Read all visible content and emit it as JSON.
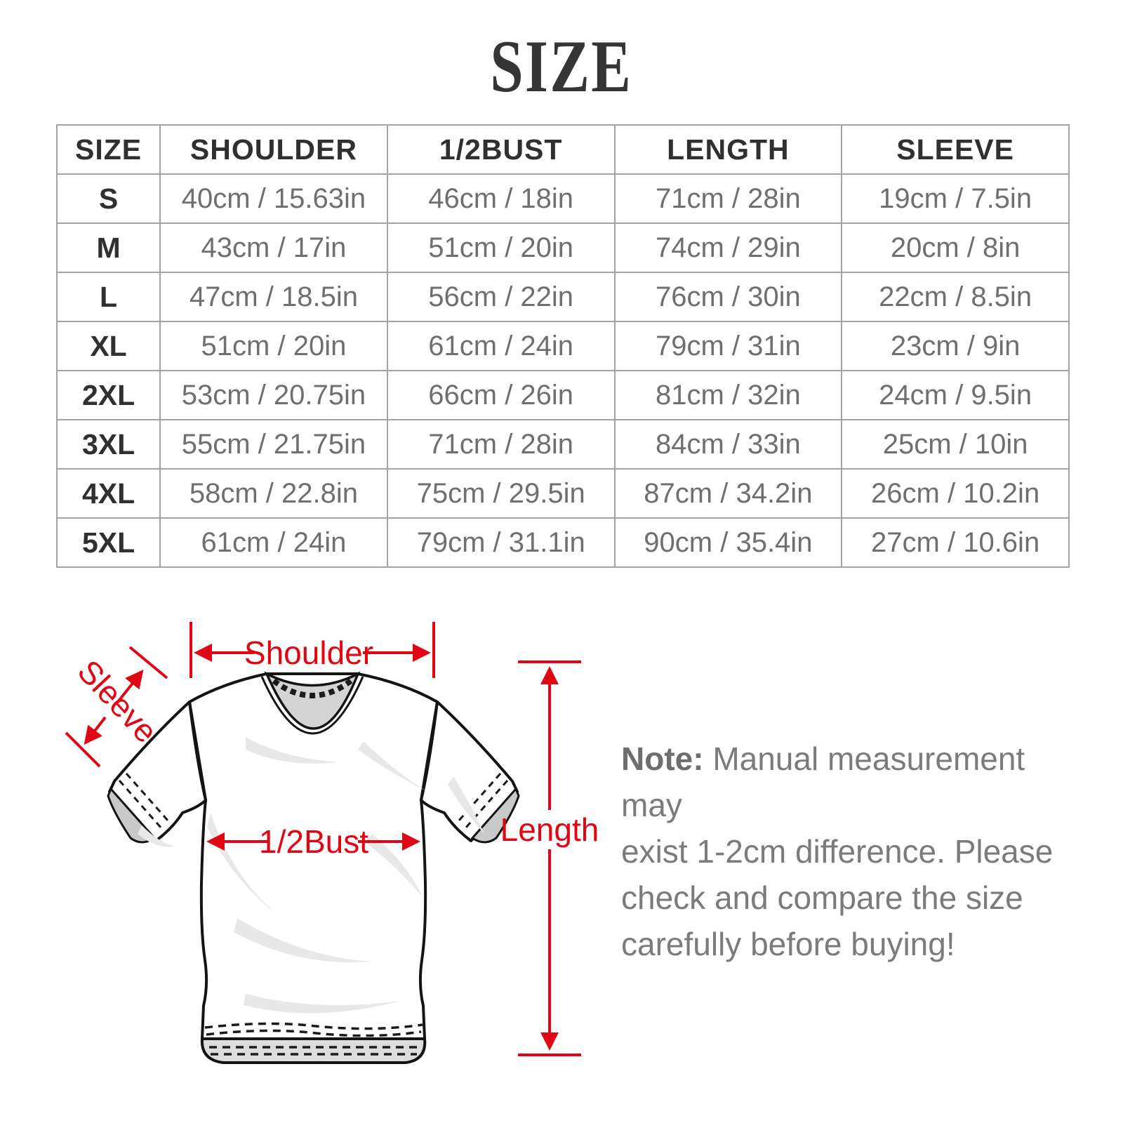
{
  "title": "SIZE",
  "table": {
    "columns": [
      "SIZE",
      "SHOULDER",
      "1/2BUST",
      "LENGTH",
      "SLEEVE"
    ],
    "rows": [
      [
        "S",
        "40cm / 15.63in",
        "46cm / 18in",
        "71cm / 28in",
        "19cm / 7.5in"
      ],
      [
        "M",
        "43cm / 17in",
        "51cm / 20in",
        "74cm / 29in",
        "20cm / 8in"
      ],
      [
        "L",
        "47cm / 18.5in",
        "56cm / 22in",
        "76cm / 30in",
        "22cm / 8.5in"
      ],
      [
        "XL",
        "51cm / 20in",
        "61cm / 24in",
        "79cm / 31in",
        "23cm / 9in"
      ],
      [
        "2XL",
        "53cm / 20.75in",
        "66cm / 26in",
        "81cm / 32in",
        "24cm / 9.5in"
      ],
      [
        "3XL",
        "55cm / 21.75in",
        "71cm / 28in",
        "84cm / 33in",
        "25cm / 10in"
      ],
      [
        "4XL",
        "58cm / 22.8in",
        "75cm / 29.5in",
        "87cm / 34.2in",
        "26cm / 10.2in"
      ],
      [
        "5XL",
        "61cm / 24in",
        "79cm / 31.1in",
        "90cm / 35.4in",
        "27cm / 10.6in"
      ]
    ]
  },
  "diagram": {
    "labels": {
      "shoulder": "Shoulder",
      "sleeve": "Sleeve",
      "half_bust": "1/2Bust",
      "length": "Length"
    },
    "accent_color": "#e10613"
  },
  "note": {
    "label": "Note:",
    "text": " Manual measurement may\nexist 1-2cm difference. Please\ncheck and compare the size\ncarefully before buying!"
  }
}
